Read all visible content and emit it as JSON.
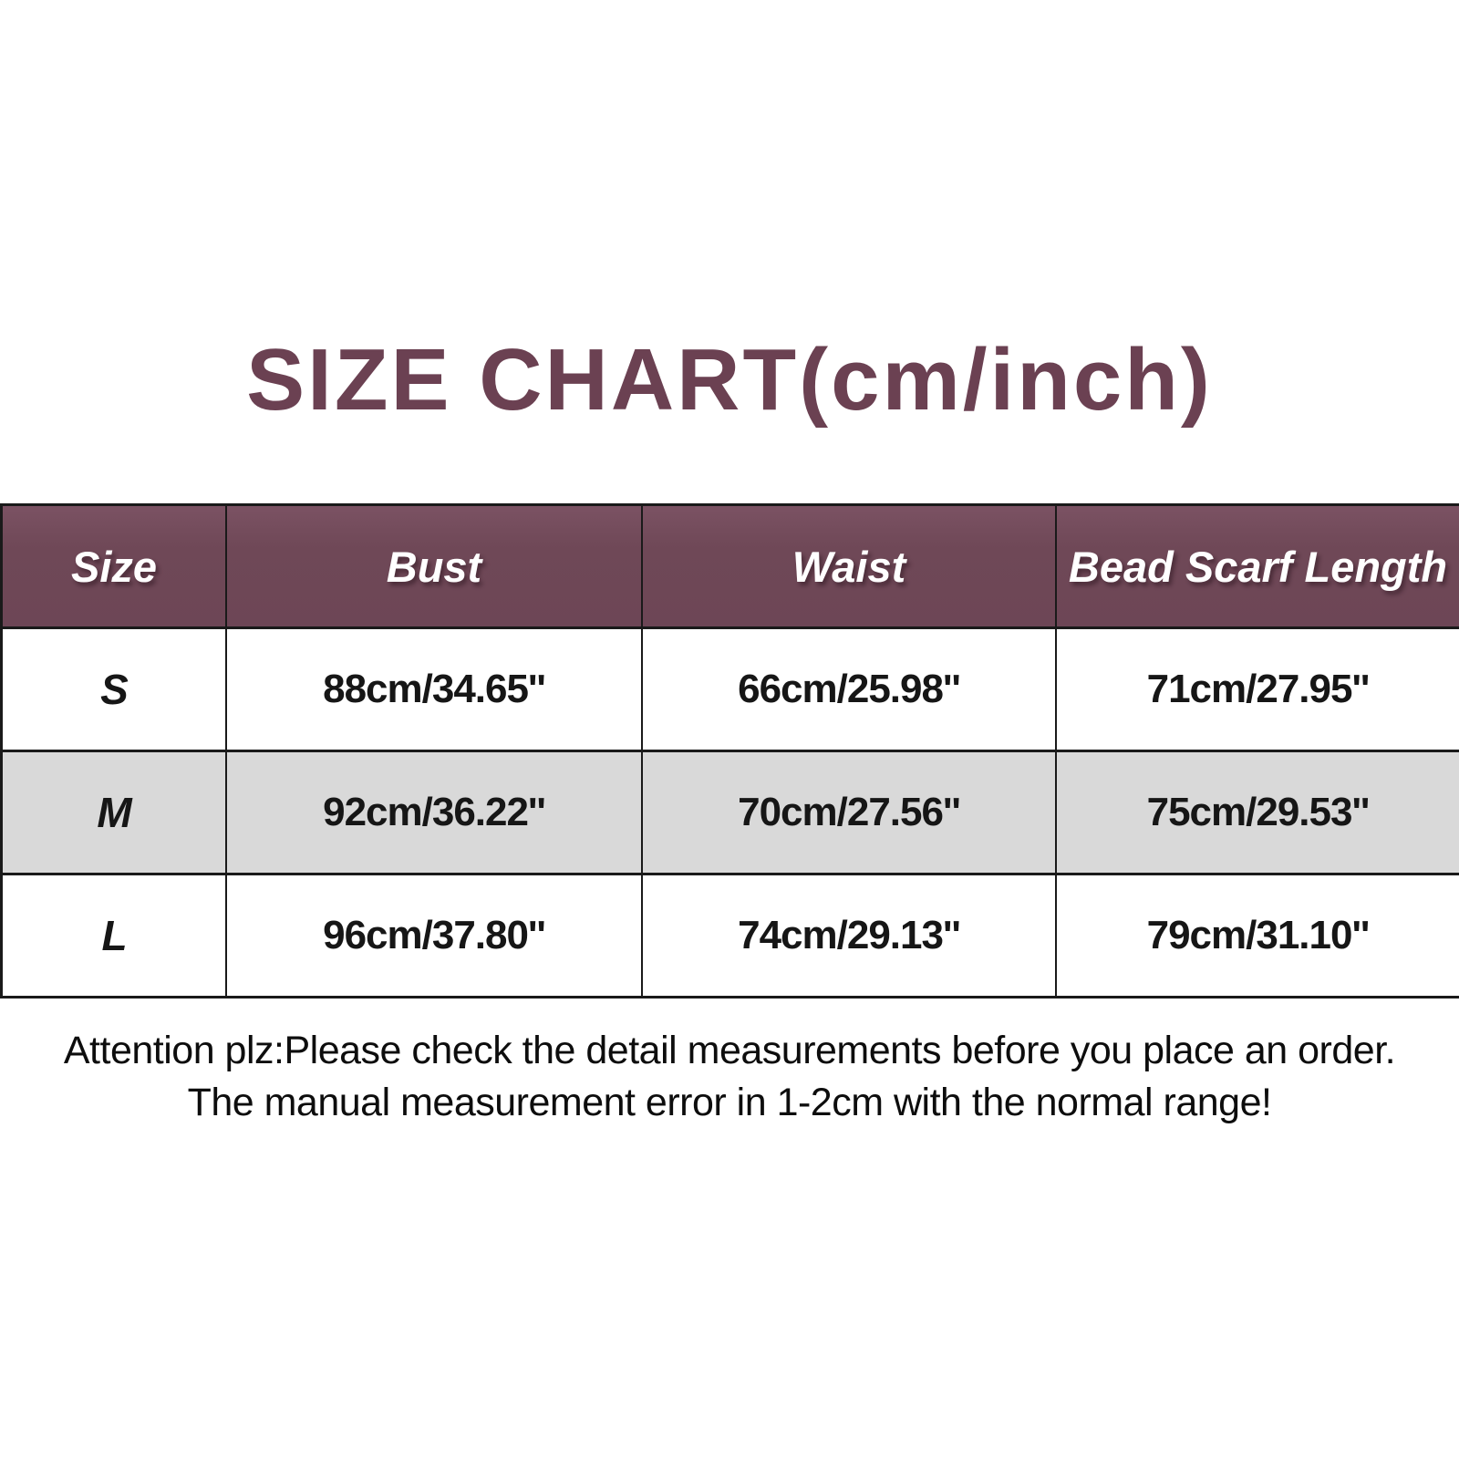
{
  "title": "SIZE CHART(cm/inch)",
  "table": {
    "headers": [
      "Size",
      "Bust",
      "Waist",
      "Bead Scarf Length"
    ],
    "rows": [
      [
        "S",
        "88cm/34.65''",
        "66cm/25.98''",
        "71cm/27.95''"
      ],
      [
        "M",
        "92cm/36.22''",
        "70cm/27.56''",
        "75cm/29.53''"
      ],
      [
        "L",
        "96cm/37.80''",
        "74cm/29.13''",
        "79cm/31.10''"
      ]
    ]
  },
  "note": {
    "line1": "Attention plz:Please check the detail measurements before you place an order.",
    "line2": "The manual measurement error in 1-2cm with the normal range!"
  },
  "colors": {
    "title_text": "#6B4152",
    "header_bg": "#6F4857",
    "header_text": "#FFFFFF",
    "row_alt_bg": "#D9D9D9",
    "row_bg": "#FFFFFF",
    "border": "#1A1A1A",
    "body_text": "#161616"
  },
  "chart_data": {
    "type": "table",
    "title": "SIZE CHART(cm/inch)",
    "columns": [
      "Size",
      "Bust",
      "Waist",
      "Bead Scarf Length"
    ],
    "rows": [
      {
        "size": "S",
        "bust_cm": 88,
        "bust_inch": 34.65,
        "waist_cm": 66,
        "waist_inch": 25.98,
        "bead_scarf_length_cm": 71,
        "bead_scarf_length_inch": 27.95
      },
      {
        "size": "M",
        "bust_cm": 92,
        "bust_inch": 36.22,
        "waist_cm": 70,
        "waist_inch": 27.56,
        "bead_scarf_length_cm": 75,
        "bead_scarf_length_inch": 29.53
      },
      {
        "size": "L",
        "bust_cm": 96,
        "bust_inch": 37.8,
        "waist_cm": 74,
        "waist_inch": 29.13,
        "bead_scarf_length_cm": 79,
        "bead_scarf_length_inch": 31.1
      }
    ]
  }
}
